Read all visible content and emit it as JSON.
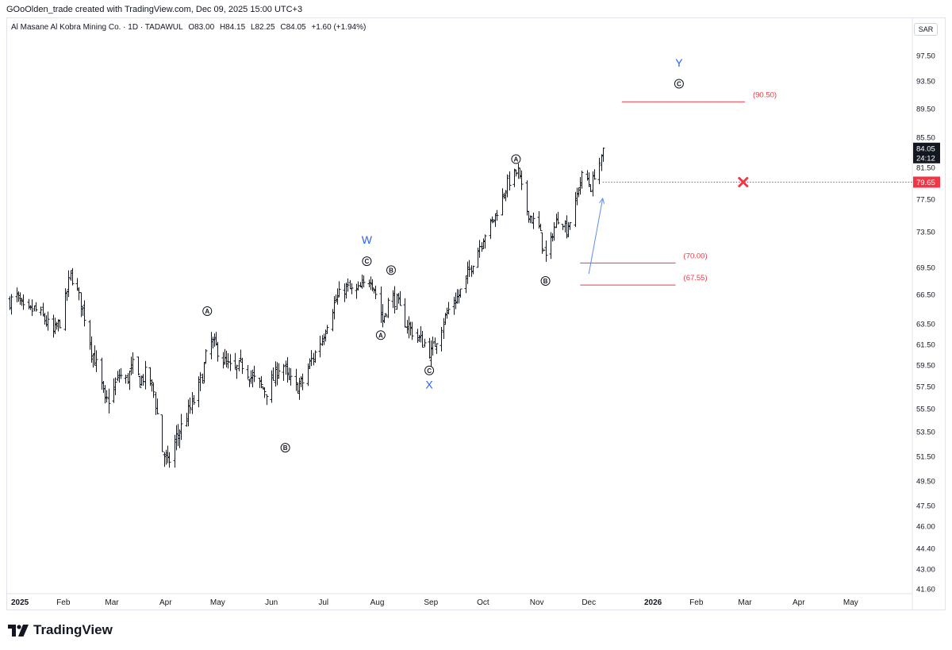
{
  "header": {
    "credit": "GOoOlden_trade created with TradingView.com, Dec 09, 2025 15:00 UTC+3"
  },
  "legend": {
    "symbol": "Al Masane Al Kobra Mining Co. · 1D · TADAWUL",
    "open": "O83.00",
    "high": "H84.15",
    "low": "L82.25",
    "close": "C84.05",
    "change": "+1.60 (+1.94%)"
  },
  "currency": "SAR",
  "footer": {
    "brand": "TradingView",
    "logo_icon": "tradingview-logo-icon"
  },
  "colors": {
    "bars": "#131722",
    "wave_label": "#2962ff",
    "target": "#f23645",
    "grid_text": "#131722"
  },
  "chart_data": {
    "type": "ohlc",
    "title": "Al Masane Al Kobra Mining Co. · 1D · TADAWUL",
    "y_axis": {
      "position": "right",
      "ticks": [
        "97.50",
        "93.50",
        "89.50",
        "85.50",
        "81.50",
        "77.50",
        "73.50",
        "69.50",
        "66.50",
        "63.50",
        "61.50",
        "59.50",
        "57.50",
        "55.50",
        "53.50",
        "51.50",
        "49.50",
        "47.50",
        "46.00",
        "44.40",
        "43.00",
        "41.60"
      ],
      "range": [
        41.0,
        99.5
      ]
    },
    "x_axis": {
      "ticks": [
        {
          "label": "2025",
          "date": "2025-01-01",
          "bold": true
        },
        {
          "label": "Feb",
          "date": "2025-02-01"
        },
        {
          "label": "Mar",
          "date": "2025-03-01"
        },
        {
          "label": "Apr",
          "date": "2025-04-01"
        },
        {
          "label": "May",
          "date": "2025-05-01"
        },
        {
          "label": "Jun",
          "date": "2025-06-01"
        },
        {
          "label": "Jul",
          "date": "2025-07-01"
        },
        {
          "label": "Aug",
          "date": "2025-08-01"
        },
        {
          "label": "Sep",
          "date": "2025-09-01"
        },
        {
          "label": "Oct",
          "date": "2025-10-01"
        },
        {
          "label": "Nov",
          "date": "2025-11-01"
        },
        {
          "label": "Dec",
          "date": "2025-12-01"
        },
        {
          "label": "2026",
          "date": "2026-01-01",
          "bold": true
        },
        {
          "label": "Feb",
          "date": "2026-02-01"
        },
        {
          "label": "Mar",
          "date": "2026-03-01"
        },
        {
          "label": "Apr",
          "date": "2026-04-01"
        },
        {
          "label": "May",
          "date": "2026-05-01"
        }
      ]
    },
    "price_path": [
      [
        "2025-01-01",
        65.8
      ],
      [
        "2025-01-05",
        66.3
      ],
      [
        "2025-01-10",
        64.5
      ],
      [
        "2025-01-15",
        65.0
      ],
      [
        "2025-01-20",
        64.2
      ],
      [
        "2025-01-26",
        62.6
      ],
      [
        "2025-01-31",
        64.0
      ],
      [
        "2025-02-05",
        68.8
      ],
      [
        "2025-02-09",
        66.8
      ],
      [
        "2025-02-13",
        64.3
      ],
      [
        "2025-02-17",
        61.0
      ],
      [
        "2025-02-21",
        59.0
      ],
      [
        "2025-02-25",
        56.0
      ],
      [
        "2025-03-01",
        56.8
      ],
      [
        "2025-03-05",
        58.6
      ],
      [
        "2025-03-09",
        58.0
      ],
      [
        "2025-03-13",
        59.4
      ],
      [
        "2025-03-17",
        58.0
      ],
      [
        "2025-03-21",
        58.8
      ],
      [
        "2025-03-25",
        57.0
      ],
      [
        "2025-03-30",
        52.0
      ],
      [
        "2025-04-02",
        50.8
      ],
      [
        "2025-04-07",
        53.0
      ],
      [
        "2025-04-12",
        54.5
      ],
      [
        "2025-04-17",
        56.2
      ],
      [
        "2025-04-22",
        58.5
      ],
      [
        "2025-04-26",
        62.0
      ],
      [
        "2025-05-01",
        61.0
      ],
      [
        "2025-05-05",
        59.8
      ],
      [
        "2025-05-10",
        58.8
      ],
      [
        "2025-05-15",
        59.6
      ],
      [
        "2025-05-20",
        58.4
      ],
      [
        "2025-05-25",
        57.6
      ],
      [
        "2025-05-30",
        57.0
      ],
      [
        "2025-06-03",
        58.6
      ],
      [
        "2025-06-07",
        60.0
      ],
      [
        "2025-06-10",
        58.3
      ],
      [
        "2025-06-15",
        57.4
      ],
      [
        "2025-06-19",
        57.9
      ],
      [
        "2025-06-23",
        59.6
      ],
      [
        "2025-06-27",
        61.0
      ],
      [
        "2025-07-01",
        62.6
      ],
      [
        "2025-07-05",
        64.8
      ],
      [
        "2025-07-09",
        66.2
      ],
      [
        "2025-07-14",
        67.3
      ],
      [
        "2025-07-19",
        66.6
      ],
      [
        "2025-07-24",
        67.5
      ],
      [
        "2025-07-28",
        68.4
      ],
      [
        "2025-08-01",
        66.0
      ],
      [
        "2025-08-04",
        63.8
      ],
      [
        "2025-08-08",
        66.3
      ],
      [
        "2025-08-12",
        65.8
      ],
      [
        "2025-08-16",
        64.0
      ],
      [
        "2025-08-20",
        63.0
      ],
      [
        "2025-08-24",
        62.2
      ],
      [
        "2025-08-28",
        61.6
      ],
      [
        "2025-09-01",
        60.6
      ],
      [
        "2025-09-05",
        62.6
      ],
      [
        "2025-09-09",
        64.2
      ],
      [
        "2025-09-13",
        65.6
      ],
      [
        "2025-09-17",
        66.4
      ],
      [
        "2025-09-21",
        68.2
      ],
      [
        "2025-09-25",
        70.2
      ],
      [
        "2025-09-29",
        72.0
      ],
      [
        "2025-10-03",
        73.8
      ],
      [
        "2025-10-07",
        75.0
      ],
      [
        "2025-10-11",
        77.2
      ],
      [
        "2025-10-15",
        79.5
      ],
      [
        "2025-10-19",
        80.6
      ],
      [
        "2025-10-21",
        81.0
      ],
      [
        "2025-10-25",
        76.5
      ],
      [
        "2025-10-29",
        75.0
      ],
      [
        "2025-11-02",
        74.0
      ],
      [
        "2025-11-05",
        71.2
      ],
      [
        "2025-11-07",
        70.0
      ],
      [
        "2025-11-10",
        73.5
      ],
      [
        "2025-11-14",
        75.8
      ],
      [
        "2025-11-18",
        73.8
      ],
      [
        "2025-11-22",
        76.0
      ],
      [
        "2025-11-25",
        79.0
      ],
      [
        "2025-11-28",
        81.0
      ],
      [
        "2025-12-02",
        79.0
      ],
      [
        "2025-12-05",
        81.5
      ],
      [
        "2025-12-08",
        82.5
      ],
      [
        "2025-12-09",
        84.05
      ]
    ],
    "last_price": {
      "value": "84.05",
      "countdown": "24:12"
    },
    "stop_level": {
      "value": 79.65,
      "label": "79.65",
      "from_date": "2025-12-09",
      "to_date": "2026-05-20"
    },
    "cancel_marker": {
      "date": "2026-02-28",
      "value": 79.65,
      "icon": "x-cancel-icon"
    },
    "target_lines": [
      {
        "value": 90.5,
        "label": "(90.50)",
        "from_date": "2025-12-20",
        "to_date": "2026-03-01"
      },
      {
        "value": 70.0,
        "label": "(70.00)",
        "from_date": "2025-11-26",
        "to_date": "2026-01-20"
      },
      {
        "value": 67.55,
        "label": "(67.55)",
        "from_date": "2025-11-26",
        "to_date": "2026-01-20"
      }
    ],
    "arrow": {
      "from": [
        "2025-12-01",
        68.8
      ],
      "to": [
        "2025-12-09",
        77.6
      ]
    },
    "wave_labels": [
      {
        "text": "A",
        "circled": true,
        "date": "2025-04-25",
        "value": 64.8
      },
      {
        "text": "B",
        "circled": true,
        "date": "2025-06-09",
        "value": 52.2
      },
      {
        "text": "C",
        "circled": true,
        "date": "2025-07-26",
        "value": 70.2
      },
      {
        "text": "W",
        "circled": false,
        "date": "2025-07-26",
        "value": 72.6,
        "color": "blue"
      },
      {
        "text": "A",
        "circled": true,
        "date": "2025-08-03",
        "value": 62.4
      },
      {
        "text": "B",
        "circled": true,
        "date": "2025-08-09",
        "value": 69.2
      },
      {
        "text": "C",
        "circled": true,
        "date": "2025-08-31",
        "value": 59.0
      },
      {
        "text": "X",
        "circled": false,
        "date": "2025-08-31",
        "value": 57.7,
        "color": "blue"
      },
      {
        "text": "A",
        "circled": true,
        "date": "2025-10-20",
        "value": 82.6
      },
      {
        "text": "B",
        "circled": true,
        "date": "2025-11-06",
        "value": 68.0
      },
      {
        "text": "C",
        "circled": true,
        "date": "2026-01-22",
        "value": 93.1
      },
      {
        "text": "Y",
        "circled": false,
        "date": "2026-01-22",
        "value": 96.4,
        "color": "blue"
      }
    ]
  }
}
